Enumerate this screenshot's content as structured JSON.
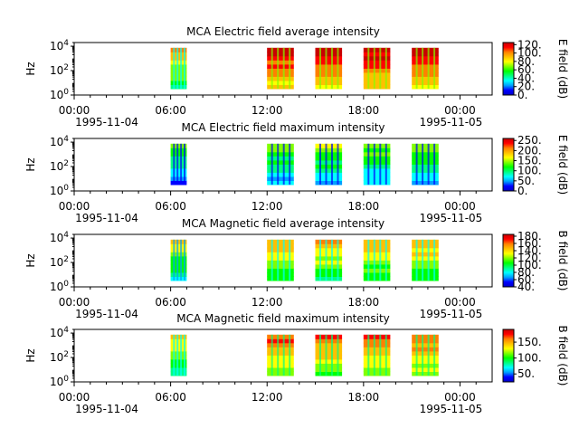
{
  "chart_data": [
    {
      "type": "heatmap",
      "title": "MCA  Electric field average intensity",
      "ylabel": "Hz",
      "colorbar_label": "E field (dB)",
      "colorbar_ticks": [
        "0.",
        "20.",
        "40.",
        "60.",
        "80.",
        "100.",
        "120."
      ],
      "colorbar_range": [
        0,
        125
      ],
      "xlim": [
        "1995-11-04 00:00",
        "1995-11-05 02:00"
      ],
      "x_ticks": [
        "00:00",
        "06:00",
        "12:00",
        "18:00",
        "00:00"
      ],
      "x_date_labels": [
        "1995-11-04",
        "1995-11-05"
      ],
      "y_ticks": [
        "10^0",
        "10^2",
        "10^4"
      ],
      "ylim_hz": [
        1,
        20000
      ],
      "data_intervals": [
        {
          "start": "06:00",
          "end": "07:00",
          "level": 0.55
        },
        {
          "start": "12:00",
          "end": "13:40",
          "level": 0.8
        },
        {
          "start": "15:00",
          "end": "16:40",
          "level": 0.8
        },
        {
          "start": "18:00",
          "end": "19:40",
          "level": 0.8
        },
        {
          "start": "21:00",
          "end": "22:40",
          "level": 0.8
        }
      ]
    },
    {
      "type": "heatmap",
      "title": "MCA  Electric field maximum intensity",
      "ylabel": "Hz",
      "colorbar_label": "E field (dB)",
      "colorbar_ticks": [
        "0.",
        "50.",
        "100.",
        "150.",
        "200.",
        "250."
      ],
      "colorbar_range": [
        0,
        260
      ],
      "xlim": [
        "1995-11-04 00:00",
        "1995-11-05 02:00"
      ],
      "x_ticks": [
        "00:00",
        "06:00",
        "12:00",
        "18:00",
        "00:00"
      ],
      "x_date_labels": [
        "1995-11-04",
        "1995-11-05"
      ],
      "y_ticks": [
        "10^0",
        "10^2",
        "10^4"
      ],
      "ylim_hz": [
        1,
        20000
      ],
      "data_intervals": [
        {
          "start": "06:00",
          "end": "07:00",
          "level": 0.3
        },
        {
          "start": "12:00",
          "end": "13:40",
          "level": 0.35
        },
        {
          "start": "15:00",
          "end": "16:40",
          "level": 0.35
        },
        {
          "start": "18:00",
          "end": "19:40",
          "level": 0.35
        },
        {
          "start": "21:00",
          "end": "22:40",
          "level": 0.35
        }
      ]
    },
    {
      "type": "heatmap",
      "title": "MCA  Magnetic field average intensity",
      "ylabel": "Hz",
      "colorbar_label": "B field (dB)",
      "colorbar_ticks": [
        "40.",
        "60.",
        "80.",
        "100.",
        "120.",
        "140.",
        "160.",
        "180."
      ],
      "colorbar_range": [
        40,
        185
      ],
      "xlim": [
        "1995-11-04 00:00",
        "1995-11-05 02:00"
      ],
      "x_ticks": [
        "00:00",
        "06:00",
        "12:00",
        "18:00",
        "00:00"
      ],
      "x_date_labels": [
        "1995-11-04",
        "1995-11-05"
      ],
      "y_ticks": [
        "10^0",
        "10^2",
        "10^4"
      ],
      "ylim_hz": [
        1,
        20000
      ],
      "data_intervals": [
        {
          "start": "06:00",
          "end": "07:00",
          "level": 0.45
        },
        {
          "start": "12:00",
          "end": "13:40",
          "level": 0.55
        },
        {
          "start": "15:00",
          "end": "16:40",
          "level": 0.55
        },
        {
          "start": "18:00",
          "end": "19:40",
          "level": 0.55
        },
        {
          "start": "21:00",
          "end": "22:40",
          "level": 0.55
        }
      ]
    },
    {
      "type": "heatmap",
      "title": "MCA  Magnetic field maximum intensity",
      "ylabel": "Hz",
      "colorbar_label": "B field (dB)",
      "colorbar_ticks": [
        "50.",
        "100.",
        "150."
      ],
      "colorbar_range": [
        25,
        190
      ],
      "xlim": [
        "1995-11-04 00:00",
        "1995-11-05 02:00"
      ],
      "x_ticks": [
        "00:00",
        "06:00",
        "12:00",
        "18:00",
        "00:00"
      ],
      "x_date_labels": [
        "1995-11-04",
        "1995-11-05"
      ],
      "y_ticks": [
        "10^0",
        "10^2",
        "10^4"
      ],
      "ylim_hz": [
        1,
        20000
      ],
      "data_intervals": [
        {
          "start": "06:00",
          "end": "07:00",
          "level": 0.5
        },
        {
          "start": "12:00",
          "end": "13:40",
          "level": 0.65
        },
        {
          "start": "15:00",
          "end": "16:40",
          "level": 0.65
        },
        {
          "start": "18:00",
          "end": "19:40",
          "level": 0.65
        },
        {
          "start": "21:00",
          "end": "22:40",
          "level": 0.65
        }
      ]
    }
  ],
  "colormap": [
    "#0000c8",
    "#0000ff",
    "#00a0ff",
    "#00ffff",
    "#00ff80",
    "#00ff00",
    "#80ff00",
    "#ffff00",
    "#ffc000",
    "#ff8000",
    "#ff0000",
    "#c80000"
  ]
}
